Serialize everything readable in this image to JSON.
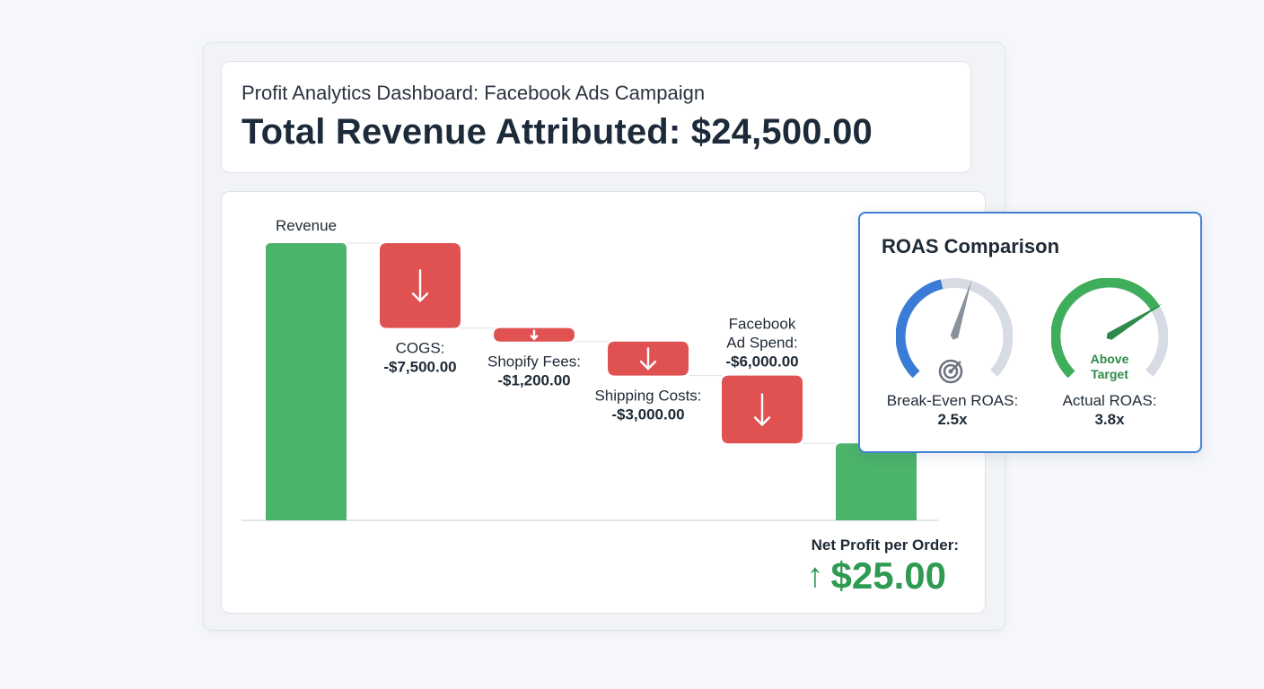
{
  "header": {
    "subtitle": "Profit Analytics Dashboard: Facebook Ads Campaign",
    "title": "Total Revenue Attributed: $24,500.00"
  },
  "chart_data": {
    "type": "waterfall",
    "title": "",
    "xlabel": "",
    "ylabel": "",
    "grid": false,
    "categories": [
      "Revenue",
      "COGS",
      "Shopify Fees",
      "Shipping Costs",
      "Facebook Ad Spend",
      "Net Profit"
    ],
    "values": [
      24500,
      -7500,
      -1200,
      -3000,
      -6000,
      6800
    ],
    "labels": [
      {
        "lines": [
          "Revenue"
        ],
        "value": ""
      },
      {
        "lines": [
          "COGS:"
        ],
        "value": "-$7,500.00"
      },
      {
        "lines": [
          "Shopify Fees:"
        ],
        "value": "-$1,200.00"
      },
      {
        "lines": [
          "Shipping Costs:"
        ],
        "value": "-$3,000.00"
      },
      {
        "lines": [
          "Facebook",
          "Ad Spend:"
        ],
        "value": "-$6,000.00"
      },
      {
        "lines": [],
        "value": ""
      }
    ],
    "colors": {
      "increase": "#4cb36a",
      "decrease": "#e05252",
      "total": "#4cb36a"
    }
  },
  "net_profit": {
    "label": "Net Profit per Order:",
    "value": "$25.00",
    "arrow_icon": "arrow-up-icon"
  },
  "roas": {
    "title": "ROAS Comparison",
    "break_even": {
      "label": "Break-Even ROAS:",
      "value": "2.5x",
      "numeric": 2.5,
      "icon": "target-icon"
    },
    "actual": {
      "label": "Actual ROAS:",
      "value": "3.8x",
      "numeric": 3.8,
      "badge": "Above Target"
    },
    "colors": {
      "break_even": "#3a7bd5",
      "actual": "#3fae5a",
      "track": "#d6dbe4"
    }
  }
}
